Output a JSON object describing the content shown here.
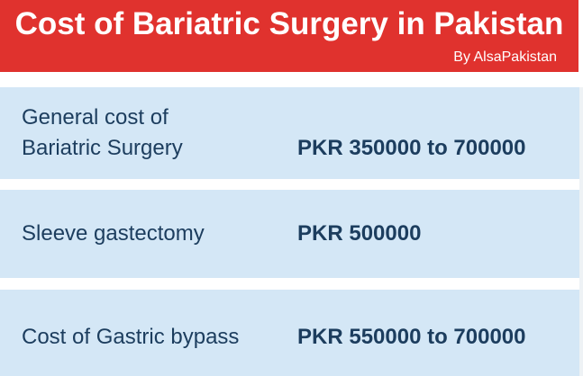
{
  "header": {
    "title": "Cost of Bariatric Surgery in Pakistan",
    "subtitle": "By AlsaPakistan",
    "background_color": "#e0322e",
    "text_color": "#ffffff"
  },
  "table": {
    "row_background_color": "#d4e7f6",
    "text_color": "#1c3d5e",
    "rows": [
      {
        "label_lines": [
          "General cost of",
          "Bariatric Surgery"
        ],
        "value": "PKR 350000 to 700000"
      },
      {
        "label_lines": [
          "Sleeve gastectomy"
        ],
        "value": "PKR 500000"
      },
      {
        "label_lines": [
          "Cost of Gastric bypass"
        ],
        "value": "PKR 550000 to 700000"
      }
    ]
  }
}
